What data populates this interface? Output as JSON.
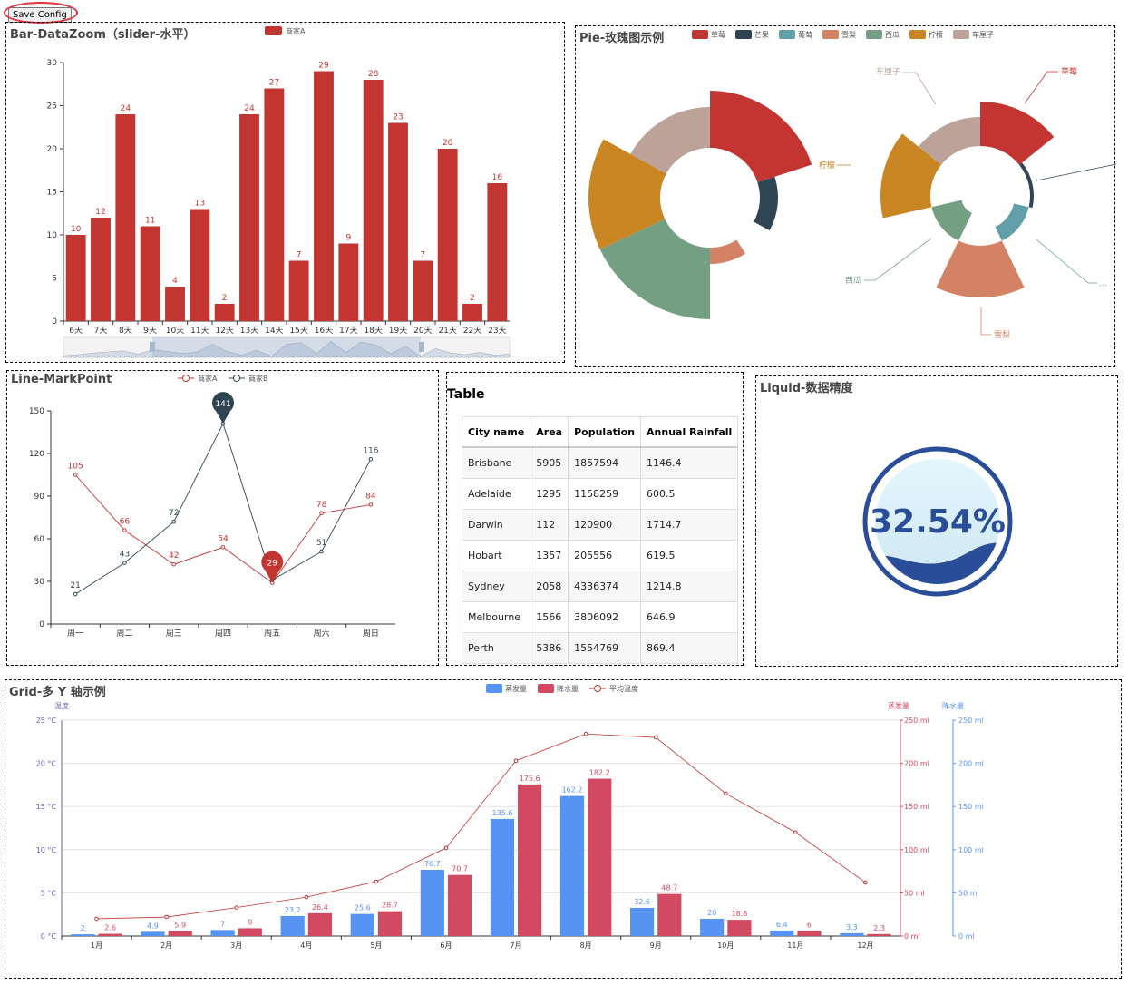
{
  "toolbar": {
    "save_label": "Save Config"
  },
  "colors": {
    "red": "#c23531",
    "dark": "#2f4554",
    "teal": "#61a0a8",
    "orange": "#d48265",
    "green": "#749f83",
    "gold": "#ca8622",
    "taupe": "#bda29a",
    "blue": "#5793f3",
    "crimson": "#d14a61",
    "purple": "#675bba"
  },
  "bar_panel": {
    "title": "Bar-DataZoom（slider-水平）",
    "legend": "商家A"
  },
  "pie_panel": {
    "title": "Pie-玫瑰图示例"
  },
  "line_panel": {
    "title": "Line-MarkPoint"
  },
  "table_panel": {
    "title": "Table",
    "headers": [
      "City name",
      "Area",
      "Population",
      "Annual Rainfall"
    ],
    "rows": [
      [
        "Brisbane",
        "5905",
        "1857594",
        "1146.4"
      ],
      [
        "Adelaide",
        "1295",
        "1158259",
        "600.5"
      ],
      [
        "Darwin",
        "112",
        "120900",
        "1714.7"
      ],
      [
        "Hobart",
        "1357",
        "205556",
        "619.5"
      ],
      [
        "Sydney",
        "2058",
        "4336374",
        "1214.8"
      ],
      [
        "Melbourne",
        "1566",
        "3806092",
        "646.9"
      ],
      [
        "Perth",
        "5386",
        "1554769",
        "869.4"
      ]
    ]
  },
  "liquid_panel": {
    "title": "Liquid-数据精度",
    "value_label": "32.54%",
    "value": 0.3254
  },
  "grid_panel": {
    "title": "Grid-多 Y 轴示例"
  },
  "chart_data": [
    {
      "id": "bar",
      "type": "bar",
      "categories": [
        "6天",
        "7天",
        "8天",
        "9天",
        "10天",
        "11天",
        "12天",
        "13天",
        "14天",
        "15天",
        "16天",
        "17天",
        "18天",
        "19天",
        "20天",
        "21天",
        "22天",
        "23天"
      ],
      "series": [
        {
          "name": "商家A",
          "values": [
            10,
            12,
            24,
            11,
            4,
            13,
            2,
            24,
            27,
            7,
            29,
            9,
            28,
            23,
            7,
            20,
            2,
            16
          ]
        }
      ],
      "ylim": [
        0,
        30
      ],
      "yticks": [
        0,
        5,
        10,
        15,
        20,
        25,
        30
      ],
      "datazoom": "slider-horizontal"
    },
    {
      "id": "pie",
      "type": "pie",
      "categories": [
        "草莓",
        "芒果",
        "葡萄",
        "雪梨",
        "西瓜",
        "柠檬",
        "车厘子"
      ],
      "series": [
        {
          "name": "radius",
          "values": [
            118,
            75,
            55,
            73,
            134,
            134,
            100
          ]
        },
        {
          "name": "area",
          "values": [
            104,
            59,
            38,
            112,
            21,
            110,
            87
          ]
        }
      ],
      "labels_shown": [
        "草莓",
        "柠檬",
        "西瓜",
        "雪梨",
        "车厘子",
        "..."
      ]
    },
    {
      "id": "line",
      "type": "line",
      "categories": [
        "周一",
        "周二",
        "周三",
        "周四",
        "周五",
        "周六",
        "周日"
      ],
      "series": [
        {
          "name": "商家A",
          "values": [
            105,
            66,
            42,
            54,
            29,
            78,
            84
          ]
        },
        {
          "name": "商家B",
          "values": [
            21,
            43,
            72,
            141,
            31,
            51,
            116
          ]
        }
      ],
      "markpoints": [
        {
          "series": "商家A",
          "value": 29
        },
        {
          "series": "商家B",
          "value": 141
        }
      ],
      "ylim": [
        0,
        150
      ],
      "yticks": [
        0,
        30,
        60,
        90,
        120,
        150
      ]
    },
    {
      "id": "grid",
      "type": "bar",
      "categories": [
        "1月",
        "2月",
        "3月",
        "4月",
        "5月",
        "6月",
        "7月",
        "8月",
        "9月",
        "10月",
        "11月",
        "12月"
      ],
      "series": [
        {
          "name": "蒸发量",
          "values": [
            2,
            4.9,
            7,
            23.2,
            25.6,
            76.7,
            135.6,
            162.2,
            32.6,
            20,
            6.4,
            3.3
          ]
        },
        {
          "name": "降水量",
          "values": [
            2.6,
            5.9,
            9,
            26.4,
            28.7,
            70.7,
            175.6,
            182.2,
            48.7,
            18.8,
            6,
            2.3
          ]
        },
        {
          "name": "平均温度",
          "type": "line",
          "values": [
            2,
            2.2,
            3.3,
            4.5,
            6.3,
            10.2,
            20.3,
            23.4,
            23,
            16.5,
            12,
            6.2
          ]
        }
      ],
      "y_axes": [
        {
          "name": "温度",
          "ticks": [
            "0 °C",
            "5 °C",
            "10 °C",
            "15 °C",
            "20 °C",
            "25 °C"
          ],
          "range": [
            0,
            25
          ]
        },
        {
          "name": "蒸发量",
          "ticks": [
            "0 ml",
            "50 ml",
            "100 ml",
            "150 ml",
            "200 ml",
            "250 ml"
          ],
          "range": [
            0,
            250
          ]
        },
        {
          "name": "降水量",
          "ticks": [
            "0 ml",
            "50 ml",
            "100 ml",
            "150 ml",
            "200 ml",
            "250 ml"
          ],
          "range": [
            0,
            250
          ]
        }
      ]
    }
  ]
}
